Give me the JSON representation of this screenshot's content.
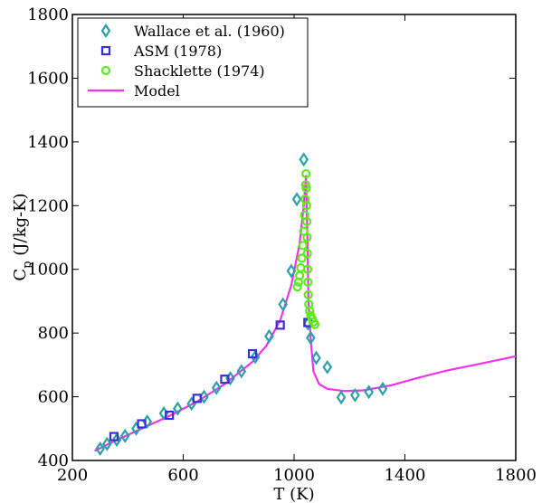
{
  "chart_data": {
    "type": "scatter",
    "xlabel": "T (K)",
    "ylabel_main": "C",
    "ylabel_sub": "p",
    "ylabel_rest": " (J/kg-K)",
    "xlim": [
      200,
      1800
    ],
    "ylim": [
      400,
      1800
    ],
    "xticks": [
      200,
      600,
      1000,
      1400,
      1800
    ],
    "yticks": [
      400,
      600,
      800,
      1000,
      1200,
      1400,
      1600,
      1800
    ],
    "grid": false,
    "legend_position": "top-left",
    "series": [
      {
        "name": "Wallace et al. (1960)",
        "marker": "diamond",
        "color": "#2aa0a8",
        "points": [
          [
            300,
            437
          ],
          [
            325,
            452
          ],
          [
            360,
            465
          ],
          [
            390,
            477
          ],
          [
            430,
            500
          ],
          [
            470,
            522
          ],
          [
            530,
            548
          ],
          [
            580,
            563
          ],
          [
            630,
            578
          ],
          [
            675,
            600
          ],
          [
            720,
            628
          ],
          [
            770,
            658
          ],
          [
            810,
            680
          ],
          [
            860,
            725
          ],
          [
            910,
            790
          ],
          [
            960,
            890
          ],
          [
            990,
            995
          ],
          [
            1010,
            1220
          ],
          [
            1035,
            1345
          ],
          [
            1050,
            830
          ],
          [
            1060,
            785
          ],
          [
            1080,
            722
          ],
          [
            1120,
            693
          ],
          [
            1170,
            598
          ],
          [
            1220,
            605
          ],
          [
            1270,
            615
          ],
          [
            1320,
            625
          ]
        ]
      },
      {
        "name": "ASM (1978)",
        "marker": "square",
        "color": "#3a2fd0",
        "points": [
          [
            350,
            475
          ],
          [
            450,
            515
          ],
          [
            550,
            542
          ],
          [
            650,
            595
          ],
          [
            750,
            655
          ],
          [
            850,
            735
          ],
          [
            950,
            825
          ],
          [
            1050,
            833
          ]
        ]
      },
      {
        "name": "Shacklette (1974)",
        "marker": "circle",
        "color": "#5dea1a",
        "points": [
          [
            1012,
            945
          ],
          [
            1016,
            960
          ],
          [
            1020,
            980
          ],
          [
            1024,
            1005
          ],
          [
            1028,
            1035
          ],
          [
            1032,
            1075
          ],
          [
            1035,
            1120
          ],
          [
            1038,
            1170
          ],
          [
            1040,
            1220
          ],
          [
            1042,
            1265
          ],
          [
            1043,
            1300
          ],
          [
            1044,
            1255
          ],
          [
            1045,
            1200
          ],
          [
            1046,
            1150
          ],
          [
            1047,
            1100
          ],
          [
            1048,
            1050
          ],
          [
            1049,
            1000
          ],
          [
            1050,
            960
          ],
          [
            1051,
            920
          ],
          [
            1053,
            890
          ],
          [
            1056,
            870
          ],
          [
            1060,
            855
          ],
          [
            1065,
            845
          ],
          [
            1070,
            835
          ],
          [
            1075,
            827
          ]
        ]
      }
    ],
    "lines": [
      {
        "name": "Model",
        "color": "#ee33ee",
        "points": [
          [
            280,
            430
          ],
          [
            350,
            460
          ],
          [
            450,
            500
          ],
          [
            550,
            540
          ],
          [
            650,
            585
          ],
          [
            750,
            640
          ],
          [
            850,
            710
          ],
          [
            900,
            760
          ],
          [
            950,
            840
          ],
          [
            990,
            950
          ],
          [
            1020,
            1080
          ],
          [
            1035,
            1200
          ],
          [
            1043,
            1295
          ],
          [
            1048,
            1100
          ],
          [
            1052,
            900
          ],
          [
            1060,
            780
          ],
          [
            1070,
            680
          ],
          [
            1090,
            640
          ],
          [
            1120,
            625
          ],
          [
            1180,
            618
          ],
          [
            1250,
            620
          ],
          [
            1350,
            636
          ],
          [
            1450,
            660
          ],
          [
            1550,
            682
          ],
          [
            1650,
            700
          ],
          [
            1800,
            727
          ]
        ]
      }
    ]
  }
}
